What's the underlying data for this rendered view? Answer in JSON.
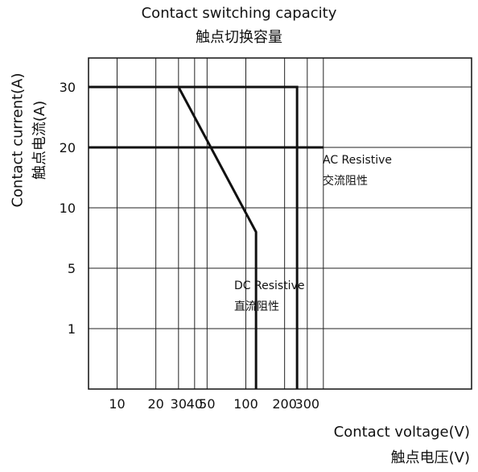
{
  "chart_data": {
    "type": "line",
    "title": "Contact switching capacity",
    "subtitle": "触点切换容量",
    "xlabel": "Contact voltage(V)",
    "xlabel_cn": "触点电压(V)",
    "ylabel": "Contact current(A)",
    "ylabel_cn": "触点电流(A)",
    "x_scale": "log",
    "y_scale": "nonuniform",
    "x_range": [
      6,
      400
    ],
    "x_ticks": [
      {
        "value": 10,
        "label": "10"
      },
      {
        "value": 20,
        "label": "20"
      },
      {
        "value": 30,
        "label": "30"
      },
      {
        "value": 40,
        "label": "40"
      },
      {
        "value": 50,
        "label": "50"
      },
      {
        "value": 100,
        "label": "100"
      },
      {
        "value": 200,
        "label": "200"
      },
      {
        "value": 300,
        "label": "300"
      }
    ],
    "x_grid": [
      6,
      10,
      20,
      30,
      40,
      50,
      100,
      200,
      300,
      400
    ],
    "y_ticks": [
      {
        "value": 1,
        "label": "1"
      },
      {
        "value": 5,
        "label": "5"
      },
      {
        "value": 10,
        "label": "10"
      },
      {
        "value": 20,
        "label": "20"
      },
      {
        "value": 30,
        "label": "30"
      }
    ],
    "grid": true,
    "series": [
      {
        "name": "AC Resistive",
        "name_cn": "交流阻性",
        "points": [
          [
            6,
            30
          ],
          [
            250,
            30
          ],
          [
            250,
            0
          ]
        ]
      },
      {
        "name": "DC Resistive",
        "name_cn": "直流阻性",
        "points": [
          [
            6,
            30
          ],
          [
            30,
            30
          ],
          [
            120,
            8
          ],
          [
            120,
            0
          ]
        ]
      },
      {
        "name": "",
        "points": [
          [
            6,
            20
          ],
          [
            400,
            20
          ]
        ]
      }
    ]
  }
}
